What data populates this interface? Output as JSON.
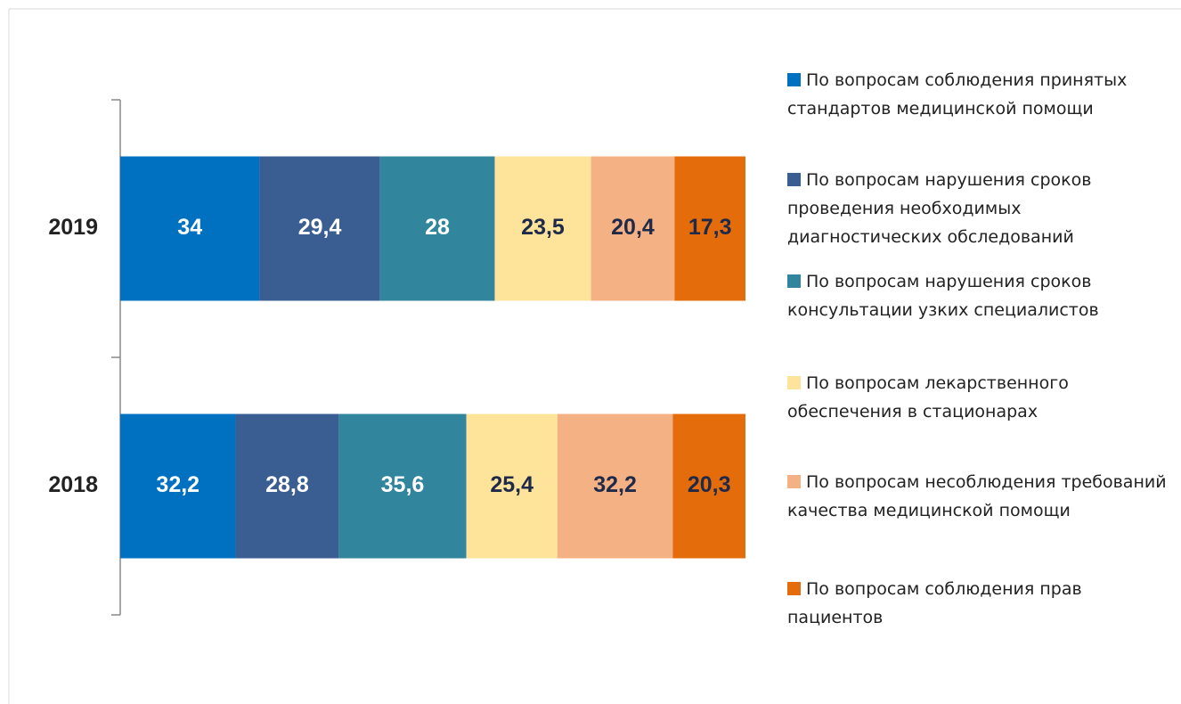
{
  "chart_data": {
    "type": "bar",
    "orientation": "horizontal",
    "stacking": "percent",
    "categories": [
      "2019",
      "2018"
    ],
    "series": [
      {
        "name": "По вопросам соблюдения принятых стандартов медицинской помощи",
        "color": "#0070c0",
        "label_color": "#ffffff",
        "values": [
          34,
          32.2
        ],
        "value_labels": [
          "34",
          "32,2"
        ]
      },
      {
        "name": "По вопросам нарушения сроков проведения необходимых диагностических обследований",
        "color": "#3a5e91",
        "label_color": "#ffffff",
        "values": [
          29.4,
          28.8
        ],
        "value_labels": [
          "29,4",
          "28,8"
        ]
      },
      {
        "name": "По вопросам нарушения сроков консультации узких специалистов",
        "color": "#31859c",
        "label_color": "#ffffff",
        "values": [
          28,
          35.6
        ],
        "value_labels": [
          "28",
          "35,6"
        ]
      },
      {
        "name": "По вопросам лекарственного обеспечения в стационарах",
        "color": "#fde49a",
        "label_color": "#1f2a4a",
        "values": [
          23.5,
          25.4
        ],
        "value_labels": [
          "23,5",
          "25,4"
        ]
      },
      {
        "name": "По вопросам несоблюдения требований качества медицинской помощи",
        "color": "#f4b183",
        "label_color": "#1f2a4a",
        "values": [
          20.4,
          32.2
        ],
        "value_labels": [
          "20,4",
          "32,2"
        ]
      },
      {
        "name": "По вопросам соблюдения прав пациентов",
        "color": "#e46c0a",
        "label_color": "#1f2a4a",
        "values": [
          17.3,
          20.3
        ],
        "value_labels": [
          "17,3",
          "20,3"
        ]
      }
    ]
  }
}
